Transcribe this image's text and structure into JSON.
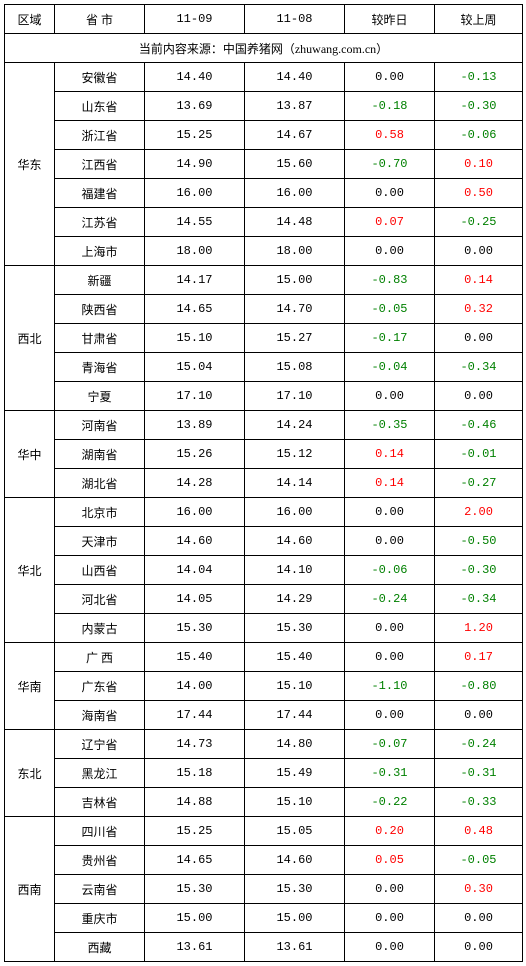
{
  "header": {
    "region": "区域",
    "province": "省 市",
    "date1": "11-09",
    "date2": "11-08",
    "vs_day": "较昨日",
    "vs_week": "较上周"
  },
  "source_line": "当前内容来源：中国养猪网（zhuwang.com.cn）",
  "colors": {
    "neg": "#008000",
    "pos": "#ff0000",
    "zero": "#000000",
    "border": "#000000",
    "bg": "#ffffff"
  },
  "regions": [
    {
      "name": "华东",
      "rows": [
        {
          "prov": "安徽省",
          "d1": "14.40",
          "d2": "14.40",
          "dday": "0.00",
          "dweek": "-0.13"
        },
        {
          "prov": "山东省",
          "d1": "13.69",
          "d2": "13.87",
          "dday": "-0.18",
          "dweek": "-0.30"
        },
        {
          "prov": "浙江省",
          "d1": "15.25",
          "d2": "14.67",
          "dday": "0.58",
          "dweek": "-0.06"
        },
        {
          "prov": "江西省",
          "d1": "14.90",
          "d2": "15.60",
          "dday": "-0.70",
          "dweek": "0.10"
        },
        {
          "prov": "福建省",
          "d1": "16.00",
          "d2": "16.00",
          "dday": "0.00",
          "dweek": "0.50"
        },
        {
          "prov": "江苏省",
          "d1": "14.55",
          "d2": "14.48",
          "dday": "0.07",
          "dweek": "-0.25"
        },
        {
          "prov": "上海市",
          "d1": "18.00",
          "d2": "18.00",
          "dday": "0.00",
          "dweek": "0.00"
        }
      ]
    },
    {
      "name": "西北",
      "rows": [
        {
          "prov": "新疆",
          "d1": "14.17",
          "d2": "15.00",
          "dday": "-0.83",
          "dweek": "0.14"
        },
        {
          "prov": "陕西省",
          "d1": "14.65",
          "d2": "14.70",
          "dday": "-0.05",
          "dweek": "0.32"
        },
        {
          "prov": "甘肃省",
          "d1": "15.10",
          "d2": "15.27",
          "dday": "-0.17",
          "dweek": "0.00"
        },
        {
          "prov": "青海省",
          "d1": "15.04",
          "d2": "15.08",
          "dday": "-0.04",
          "dweek": "-0.34"
        },
        {
          "prov": "宁夏",
          "d1": "17.10",
          "d2": "17.10",
          "dday": "0.00",
          "dweek": "0.00"
        }
      ]
    },
    {
      "name": "华中",
      "rows": [
        {
          "prov": "河南省",
          "d1": "13.89",
          "d2": "14.24",
          "dday": "-0.35",
          "dweek": "-0.46"
        },
        {
          "prov": "湖南省",
          "d1": "15.26",
          "d2": "15.12",
          "dday": "0.14",
          "dweek": "-0.01"
        },
        {
          "prov": "湖北省",
          "d1": "14.28",
          "d2": "14.14",
          "dday": "0.14",
          "dweek": "-0.27"
        }
      ]
    },
    {
      "name": "华北",
      "rows": [
        {
          "prov": "北京市",
          "d1": "16.00",
          "d2": "16.00",
          "dday": "0.00",
          "dweek": "2.00"
        },
        {
          "prov": "天津市",
          "d1": "14.60",
          "d2": "14.60",
          "dday": "0.00",
          "dweek": "-0.50"
        },
        {
          "prov": "山西省",
          "d1": "14.04",
          "d2": "14.10",
          "dday": "-0.06",
          "dweek": "-0.30"
        },
        {
          "prov": "河北省",
          "d1": "14.05",
          "d2": "14.29",
          "dday": "-0.24",
          "dweek": "-0.34"
        },
        {
          "prov": "内蒙古",
          "d1": "15.30",
          "d2": "15.30",
          "dday": "0.00",
          "dweek": "1.20"
        }
      ]
    },
    {
      "name": "华南",
      "rows": [
        {
          "prov": "广 西",
          "d1": "15.40",
          "d2": "15.40",
          "dday": "0.00",
          "dweek": "0.17"
        },
        {
          "prov": "广东省",
          "d1": "14.00",
          "d2": "15.10",
          "dday": "-1.10",
          "dweek": "-0.80"
        },
        {
          "prov": "海南省",
          "d1": "17.44",
          "d2": "17.44",
          "dday": "0.00",
          "dweek": "0.00"
        }
      ]
    },
    {
      "name": "东北",
      "rows": [
        {
          "prov": "辽宁省",
          "d1": "14.73",
          "d2": "14.80",
          "dday": "-0.07",
          "dweek": "-0.24"
        },
        {
          "prov": "黑龙江",
          "d1": "15.18",
          "d2": "15.49",
          "dday": "-0.31",
          "dweek": "-0.31"
        },
        {
          "prov": "吉林省",
          "d1": "14.88",
          "d2": "15.10",
          "dday": "-0.22",
          "dweek": "-0.33"
        }
      ]
    },
    {
      "name": "西南",
      "rows": [
        {
          "prov": "四川省",
          "d1": "15.25",
          "d2": "15.05",
          "dday": "0.20",
          "dweek": "0.48"
        },
        {
          "prov": "贵州省",
          "d1": "14.65",
          "d2": "14.60",
          "dday": "0.05",
          "dweek": "-0.05"
        },
        {
          "prov": "云南省",
          "d1": "15.30",
          "d2": "15.30",
          "dday": "0.00",
          "dweek": "0.30"
        },
        {
          "prov": "重庆市",
          "d1": "15.00",
          "d2": "15.00",
          "dday": "0.00",
          "dweek": "0.00"
        },
        {
          "prov": "西藏",
          "d1": "13.61",
          "d2": "13.61",
          "dday": "0.00",
          "dweek": "0.00"
        }
      ]
    }
  ]
}
